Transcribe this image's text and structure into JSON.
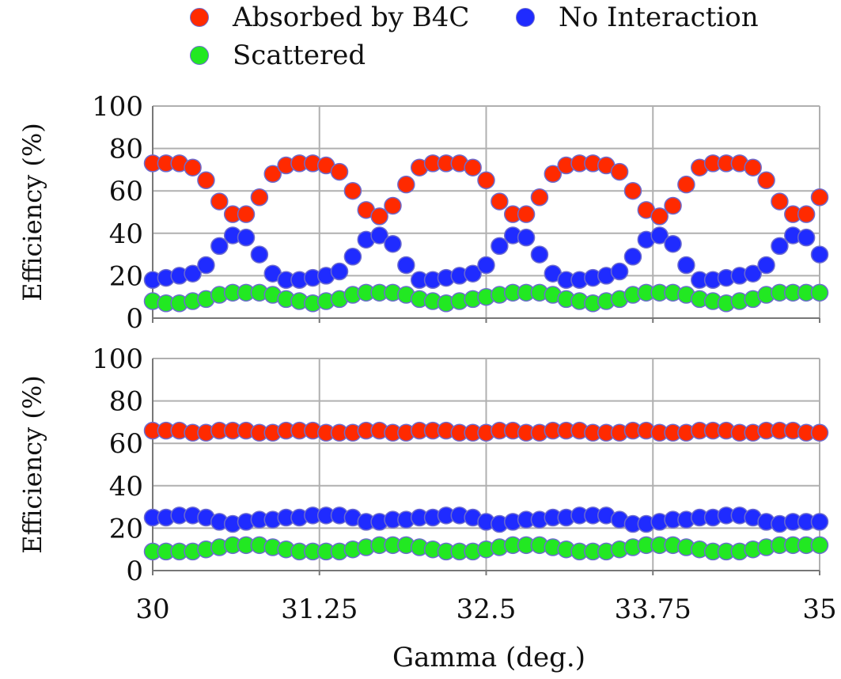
{
  "legend": {
    "absorbed": "Absorbed by B4C",
    "no_interaction": "No Interaction",
    "scattered": "Scattered"
  },
  "colors": {
    "absorbed": "#ff2a00",
    "no_interaction": "#1f2bff",
    "scattered": "#22e822",
    "marker_edge": "#6b6bcf",
    "grid": "#b0b0b0"
  },
  "chart_data": [
    {
      "type": "scatter",
      "panel": "top",
      "xlabel": "",
      "ylabel": "Efficiency (%)",
      "xlim": [
        30,
        35
      ],
      "ylim": [
        0,
        100
      ],
      "yticks": [
        "100",
        "80",
        "60",
        "40",
        "20",
        "0"
      ],
      "grid": true,
      "x": [
        30,
        30.1,
        30.2,
        30.3,
        30.4,
        30.5,
        30.6,
        30.7,
        30.8,
        30.9,
        31.0,
        31.1,
        31.2,
        31.3,
        31.4,
        31.5,
        31.6,
        31.7,
        31.8,
        31.9,
        32.0,
        32.1,
        32.2,
        32.3,
        32.4,
        32.5,
        32.6,
        32.7,
        32.8,
        32.9,
        33.0,
        33.1,
        33.2,
        33.3,
        33.4,
        33.5,
        33.6,
        33.7,
        33.8,
        33.9,
        34.0,
        34.1,
        34.2,
        34.3,
        34.4,
        34.5,
        34.6,
        34.7,
        34.8,
        34.9,
        35.0
      ],
      "series": [
        {
          "name": "Absorbed by B4C",
          "values": [
            73,
            73,
            73,
            71,
            65,
            55,
            49,
            49,
            57,
            68,
            72,
            73,
            73,
            72,
            69,
            60,
            51,
            48,
            53,
            63,
            71,
            73,
            73,
            73,
            71,
            65,
            55,
            49,
            49,
            57,
            68,
            72,
            73,
            73,
            72,
            69,
            60,
            51,
            48,
            53,
            63,
            71,
            73,
            73,
            73,
            71,
            65,
            55,
            49,
            49,
            57
          ]
        },
        {
          "name": "No Interaction",
          "values": [
            18,
            19,
            20,
            21,
            25,
            34,
            39,
            38,
            30,
            21,
            18,
            18,
            19,
            20,
            22,
            29,
            37,
            39,
            35,
            25,
            18,
            18,
            19,
            20,
            21,
            25,
            34,
            39,
            38,
            30,
            21,
            18,
            18,
            19,
            20,
            22,
            29,
            37,
            39,
            35,
            25,
            18,
            18,
            19,
            20,
            21,
            25,
            34,
            39,
            38,
            30
          ]
        },
        {
          "name": "Scattered",
          "values": [
            8,
            7,
            7,
            8,
            9,
            11,
            12,
            12,
            12,
            11,
            9,
            8,
            7,
            8,
            9,
            11,
            12,
            12,
            12,
            11,
            9,
            8,
            7,
            8,
            9,
            10,
            11,
            12,
            12,
            12,
            11,
            9,
            8,
            7,
            8,
            9,
            11,
            12,
            12,
            12,
            11,
            9,
            8,
            7,
            8,
            9,
            11,
            12,
            12,
            12,
            12
          ]
        }
      ]
    },
    {
      "type": "scatter",
      "panel": "bottom",
      "xlabel": "Gamma (deg.)",
      "ylabel": "Efficiency (%)",
      "xlim": [
        30,
        35
      ],
      "ylim": [
        0,
        100
      ],
      "xticks": [
        "30",
        "31.25",
        "32.5",
        "33.75",
        "35"
      ],
      "yticks": [
        "100",
        "80",
        "60",
        "40",
        "20",
        "0"
      ],
      "grid": true,
      "x": [
        30,
        30.1,
        30.2,
        30.3,
        30.4,
        30.5,
        30.6,
        30.7,
        30.8,
        30.9,
        31.0,
        31.1,
        31.2,
        31.3,
        31.4,
        31.5,
        31.6,
        31.7,
        31.8,
        31.9,
        32.0,
        32.1,
        32.2,
        32.3,
        32.4,
        32.5,
        32.6,
        32.7,
        32.8,
        32.9,
        33.0,
        33.1,
        33.2,
        33.3,
        33.4,
        33.5,
        33.6,
        33.7,
        33.8,
        33.9,
        34.0,
        34.1,
        34.2,
        34.3,
        34.4,
        34.5,
        34.6,
        34.7,
        34.8,
        34.9,
        35.0
      ],
      "series": [
        {
          "name": "Absorbed by B4C",
          "values": [
            66,
            66,
            66,
            65,
            65,
            66,
            66,
            66,
            65,
            65,
            66,
            66,
            66,
            65,
            65,
            65,
            66,
            66,
            65,
            65,
            66,
            66,
            66,
            65,
            65,
            65,
            66,
            66,
            65,
            65,
            66,
            66,
            66,
            65,
            65,
            65,
            66,
            66,
            65,
            65,
            65,
            66,
            66,
            66,
            65,
            65,
            66,
            66,
            66,
            65,
            65
          ]
        },
        {
          "name": "No Interaction",
          "values": [
            25,
            25,
            26,
            26,
            25,
            23,
            22,
            23,
            24,
            24,
            25,
            25,
            26,
            26,
            26,
            25,
            23,
            23,
            24,
            24,
            25,
            25,
            26,
            26,
            25,
            23,
            22,
            23,
            24,
            24,
            25,
            25,
            26,
            26,
            26,
            24,
            22,
            22,
            23,
            24,
            24,
            25,
            25,
            26,
            26,
            25,
            23,
            22,
            23,
            23,
            23
          ]
        },
        {
          "name": "Scattered",
          "values": [
            9,
            9,
            9,
            9,
            10,
            11,
            12,
            12,
            12,
            11,
            10,
            9,
            9,
            9,
            9,
            10,
            11,
            12,
            12,
            12,
            11,
            10,
            9,
            9,
            9,
            10,
            11,
            12,
            12,
            12,
            11,
            10,
            9,
            9,
            9,
            10,
            11,
            12,
            12,
            12,
            11,
            10,
            9,
            9,
            9,
            10,
            11,
            12,
            12,
            12,
            12
          ]
        }
      ]
    }
  ]
}
